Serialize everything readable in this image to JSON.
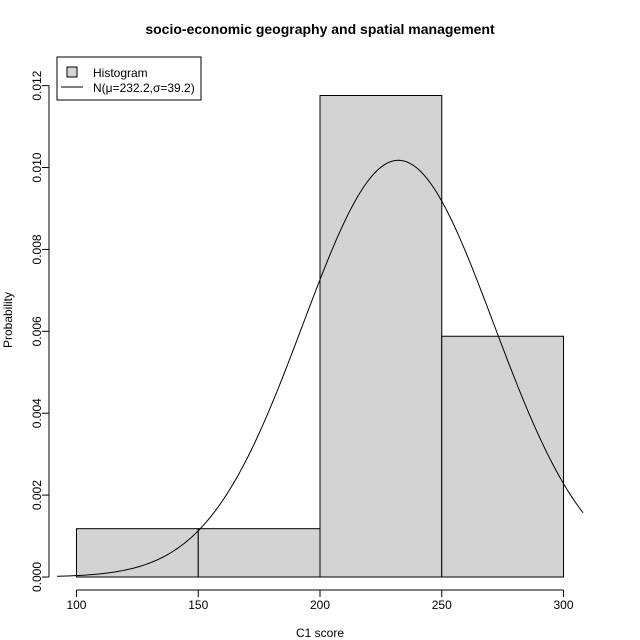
{
  "chart_data": {
    "type": "bar",
    "title": "socio-economic geography and spatial management",
    "xlabel": "C1 score",
    "ylabel": "Probability",
    "xlim": [
      92,
      308
    ],
    "ylim": [
      0,
      0.0127
    ],
    "x_ticks": [
      100,
      150,
      200,
      250,
      300
    ],
    "x_tick_labels": [
      "100",
      "150",
      "200",
      "250",
      "300"
    ],
    "y_ticks": [
      0,
      0.002,
      0.004,
      0.006,
      0.008,
      0.01,
      0.012
    ],
    "y_tick_labels": [
      "0.000",
      "0.002",
      "0.004",
      "0.006",
      "0.008",
      "0.010",
      "0.012"
    ],
    "bins": [
      {
        "from": 100,
        "to": 150,
        "value": 0.00118
      },
      {
        "from": 150,
        "to": 200,
        "value": 0.00118
      },
      {
        "from": 200,
        "to": 250,
        "value": 0.01176
      },
      {
        "from": 250,
        "to": 300,
        "value": 0.00588
      }
    ],
    "normal_curve": {
      "mu": 232.2,
      "sigma": 39.2
    },
    "grid": false,
    "legend_position": "top-left",
    "legend": [
      {
        "label": "Histogram",
        "kind": "box"
      },
      {
        "label": "N(μ=232.2,σ=39.2)",
        "kind": "line"
      }
    ],
    "colors": {
      "bar_fill": "#d3d3d3",
      "bar_stroke": "#000000",
      "curve": "#000000"
    }
  }
}
